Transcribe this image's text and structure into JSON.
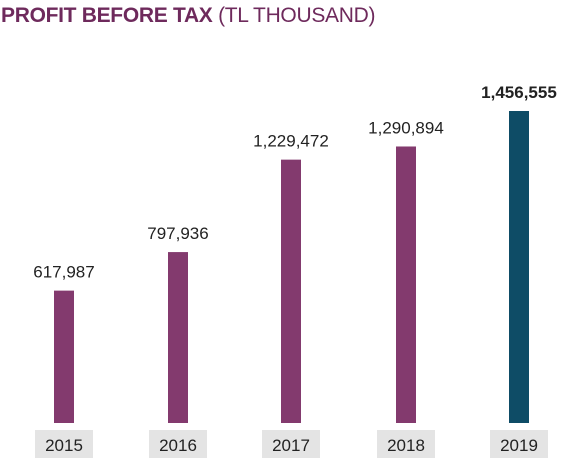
{
  "chart_data": {
    "type": "bar",
    "title": "PROFIT BEFORE TAX",
    "subtitle": "(TL THOUSAND)",
    "categories": [
      "2015",
      "2016",
      "2017",
      "2018",
      "2019"
    ],
    "values": [
      617987,
      797936,
      1229472,
      1290894,
      1456555
    ],
    "value_labels": [
      "617,987",
      "797,936",
      "1,229,472",
      "1,290,894",
      "1,456,555"
    ],
    "ylim": [
      0,
      1456555
    ],
    "grid": false,
    "legend": "none",
    "colors": {
      "title": "#6e2a5c",
      "bar": "#833a6e",
      "highlight_bar": "#0e4c66",
      "category_bg": "#e4e4e4",
      "label": "#222222"
    },
    "highlight_index": 4
  }
}
